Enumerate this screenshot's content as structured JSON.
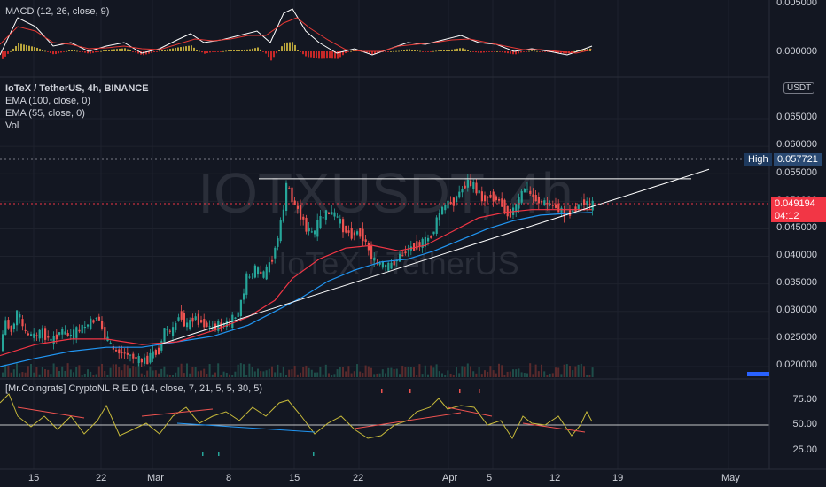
{
  "macd_panel": {
    "legend": "MACD (12, 26, close, 9)",
    "price_labels": [
      "0.005000",
      "0.000000"
    ]
  },
  "main_panel": {
    "title": "IoTeX / TetherUS, 4h, BINANCE",
    "indicators": [
      "EMA (100, close, 0)",
      "EMA (55, close, 0)",
      "Vol"
    ],
    "currency_button": "USDT",
    "watermark_symbol": "IOTXUSDT, 4h",
    "watermark_name": "IoTeX / TetherUS",
    "high_label": "High",
    "high_value": "0.057721",
    "last_price": "0.049194",
    "countdown": "04:12",
    "price_labels": [
      "0.065000",
      "0.060000",
      "0.055000",
      "0.050000",
      "0.045000",
      "0.040000",
      "0.035000",
      "0.030000",
      "0.025000",
      "0.020000"
    ]
  },
  "osc_panel": {
    "legend": "[Mr.Coingrats] CryptoNL R.E.D (14, close, 7, 21, 5, 5, 30, 5)",
    "price_labels": [
      "75.00",
      "50.00",
      "25.00"
    ]
  },
  "time_axis": [
    "15",
    "22",
    "Mar",
    "8",
    "15",
    "22",
    "Apr",
    "5",
    "12",
    "19",
    "May"
  ],
  "colors": {
    "background": "#131722",
    "up": "#26a69a",
    "down": "#ef5350",
    "ema100": "#2196f3",
    "ema55": "#f23645",
    "macd_line": "#ffffff",
    "signal_line": "#e53935",
    "osc_line": "#c6b93a",
    "price_badge": "#f23645",
    "high_badge": "#1e3a5f"
  },
  "chart_data": {
    "type": "candlestick",
    "symbol": "IOTXUSDT",
    "interval": "4h",
    "ylim": [
      0.018,
      0.068
    ],
    "high": 0.057721,
    "last": 0.049194,
    "price_path": [
      [
        0,
        0.021
      ],
      [
        8,
        0.0285
      ],
      [
        14,
        0.0262
      ],
      [
        22,
        0.03
      ],
      [
        30,
        0.026
      ],
      [
        40,
        0.0255
      ],
      [
        50,
        0.0262
      ],
      [
        60,
        0.0245
      ],
      [
        70,
        0.0265
      ],
      [
        80,
        0.0255
      ],
      [
        95,
        0.027
      ],
      [
        105,
        0.028
      ],
      [
        112,
        0.0293
      ],
      [
        120,
        0.0255
      ],
      [
        130,
        0.023
      ],
      [
        140,
        0.0225
      ],
      [
        150,
        0.022
      ],
      [
        160,
        0.021
      ],
      [
        168,
        0.0212
      ],
      [
        175,
        0.0225
      ],
      [
        182,
        0.023
      ],
      [
        188,
        0.027
      ],
      [
        196,
        0.026
      ],
      [
        205,
        0.03
      ],
      [
        212,
        0.027
      ],
      [
        220,
        0.029
      ],
      [
        230,
        0.028
      ],
      [
        240,
        0.027
      ],
      [
        250,
        0.0275
      ],
      [
        262,
        0.028
      ],
      [
        272,
        0.03
      ],
      [
        280,
        0.036
      ],
      [
        290,
        0.0375
      ],
      [
        300,
        0.0365
      ],
      [
        310,
        0.04
      ],
      [
        318,
        0.045
      ],
      [
        322,
        0.049
      ],
      [
        326,
        0.0535
      ],
      [
        332,
        0.05
      ],
      [
        340,
        0.048
      ],
      [
        348,
        0.045
      ],
      [
        356,
        0.044
      ],
      [
        364,
        0.047
      ],
      [
        372,
        0.048
      ],
      [
        380,
        0.0475
      ],
      [
        390,
        0.045
      ],
      [
        398,
        0.044
      ],
      [
        408,
        0.0445
      ],
      [
        416,
        0.042
      ],
      [
        424,
        0.039
      ],
      [
        432,
        0.0385
      ],
      [
        440,
        0.038
      ],
      [
        450,
        0.0395
      ],
      [
        460,
        0.041
      ],
      [
        470,
        0.042
      ],
      [
        480,
        0.0425
      ],
      [
        490,
        0.044
      ],
      [
        498,
        0.048
      ],
      [
        506,
        0.0495
      ],
      [
        514,
        0.05
      ],
      [
        522,
        0.052
      ],
      [
        530,
        0.0535
      ],
      [
        538,
        0.0525
      ],
      [
        546,
        0.0505
      ],
      [
        556,
        0.051
      ],
      [
        566,
        0.05
      ],
      [
        576,
        0.0475
      ],
      [
        584,
        0.049
      ],
      [
        594,
        0.0525
      ],
      [
        602,
        0.051
      ],
      [
        610,
        0.05
      ],
      [
        620,
        0.0495
      ],
      [
        630,
        0.049
      ],
      [
        640,
        0.0475
      ],
      [
        650,
        0.0485
      ],
      [
        660,
        0.05
      ],
      [
        668,
        0.0492
      ]
    ],
    "ema55_path": [
      [
        0,
        0.022
      ],
      [
        40,
        0.024
      ],
      [
        80,
        0.025
      ],
      [
        120,
        0.025
      ],
      [
        160,
        0.024
      ],
      [
        200,
        0.0245
      ],
      [
        240,
        0.0265
      ],
      [
        280,
        0.029
      ],
      [
        310,
        0.032
      ],
      [
        330,
        0.036
      ],
      [
        360,
        0.0395
      ],
      [
        390,
        0.0415
      ],
      [
        420,
        0.042
      ],
      [
        450,
        0.041
      ],
      [
        480,
        0.042
      ],
      [
        510,
        0.0445
      ],
      [
        540,
        0.047
      ],
      [
        570,
        0.048
      ],
      [
        600,
        0.0485
      ],
      [
        630,
        0.0485
      ],
      [
        668,
        0.0485
      ]
    ],
    "ema100_path": [
      [
        0,
        0.02
      ],
      [
        40,
        0.0215
      ],
      [
        80,
        0.0228
      ],
      [
        120,
        0.0235
      ],
      [
        160,
        0.0235
      ],
      [
        200,
        0.0245
      ],
      [
        240,
        0.0255
      ],
      [
        280,
        0.0275
      ],
      [
        310,
        0.03
      ],
      [
        340,
        0.0325
      ],
      [
        370,
        0.0355
      ],
      [
        400,
        0.0375
      ],
      [
        430,
        0.039
      ],
      [
        460,
        0.0395
      ],
      [
        490,
        0.041
      ],
      [
        520,
        0.043
      ],
      [
        550,
        0.045
      ],
      [
        580,
        0.0465
      ],
      [
        610,
        0.0475
      ],
      [
        640,
        0.0478
      ],
      [
        668,
        0.048
      ]
    ],
    "resistance_line": [
      [
        292,
        0.0541
      ],
      [
        780,
        0.0541
      ]
    ],
    "support_trendline": [
      [
        180,
        0.024
      ],
      [
        800,
        0.0558
      ]
    ],
    "macd_line": [
      [
        0,
        62
      ],
      [
        20,
        20
      ],
      [
        40,
        30
      ],
      [
        60,
        52
      ],
      [
        80,
        48
      ],
      [
        100,
        58
      ],
      [
        120,
        52
      ],
      [
        140,
        48
      ],
      [
        160,
        60
      ],
      [
        180,
        55
      ],
      [
        200,
        45
      ],
      [
        215,
        38
      ],
      [
        230,
        48
      ],
      [
        250,
        45
      ],
      [
        270,
        40
      ],
      [
        290,
        35
      ],
      [
        305,
        48
      ],
      [
        320,
        15
      ],
      [
        330,
        10
      ],
      [
        345,
        35
      ],
      [
        360,
        48
      ],
      [
        380,
        60
      ],
      [
        400,
        55
      ],
      [
        420,
        62
      ],
      [
        440,
        55
      ],
      [
        460,
        48
      ],
      [
        480,
        50
      ],
      [
        500,
        45
      ],
      [
        520,
        40
      ],
      [
        540,
        48
      ],
      [
        560,
        50
      ],
      [
        580,
        58
      ],
      [
        600,
        55
      ],
      [
        620,
        58
      ],
      [
        640,
        62
      ],
      [
        660,
        55
      ],
      [
        668,
        52
      ]
    ],
    "macd_signal": [
      [
        0,
        50
      ],
      [
        20,
        30
      ],
      [
        40,
        35
      ],
      [
        60,
        48
      ],
      [
        80,
        50
      ],
      [
        100,
        55
      ],
      [
        120,
        54
      ],
      [
        140,
        52
      ],
      [
        160,
        55
      ],
      [
        180,
        56
      ],
      [
        200,
        50
      ],
      [
        220,
        44
      ],
      [
        240,
        46
      ],
      [
        260,
        44
      ],
      [
        280,
        40
      ],
      [
        300,
        40
      ],
      [
        320,
        26
      ],
      [
        335,
        20
      ],
      [
        350,
        32
      ],
      [
        370,
        45
      ],
      [
        390,
        56
      ],
      [
        410,
        58
      ],
      [
        430,
        58
      ],
      [
        450,
        52
      ],
      [
        470,
        50
      ],
      [
        490,
        48
      ],
      [
        510,
        45
      ],
      [
        530,
        44
      ],
      [
        550,
        48
      ],
      [
        570,
        52
      ],
      [
        590,
        56
      ],
      [
        610,
        56
      ],
      [
        630,
        58
      ],
      [
        650,
        60
      ],
      [
        668,
        56
      ]
    ],
    "osc_line": [
      [
        0,
        455
      ],
      [
        10,
        445
      ],
      [
        20,
        470
      ],
      [
        35,
        482
      ],
      [
        50,
        470
      ],
      [
        65,
        485
      ],
      [
        80,
        470
      ],
      [
        95,
        490
      ],
      [
        110,
        475
      ],
      [
        120,
        458
      ],
      [
        135,
        492
      ],
      [
        150,
        485
      ],
      [
        165,
        478
      ],
      [
        180,
        490
      ],
      [
        195,
        470
      ],
      [
        210,
        460
      ],
      [
        225,
        478
      ],
      [
        240,
        470
      ],
      [
        255,
        465
      ],
      [
        270,
        475
      ],
      [
        285,
        460
      ],
      [
        300,
        470
      ],
      [
        315,
        455
      ],
      [
        325,
        452
      ],
      [
        340,
        470
      ],
      [
        355,
        490
      ],
      [
        370,
        478
      ],
      [
        385,
        470
      ],
      [
        400,
        485
      ],
      [
        415,
        495
      ],
      [
        430,
        492
      ],
      [
        445,
        480
      ],
      [
        460,
        475
      ],
      [
        470,
        465
      ],
      [
        485,
        460
      ],
      [
        495,
        450
      ],
      [
        505,
        462
      ],
      [
        520,
        458
      ],
      [
        535,
        460
      ],
      [
        550,
        480
      ],
      [
        565,
        475
      ],
      [
        578,
        495
      ],
      [
        590,
        470
      ],
      [
        600,
        478
      ],
      [
        615,
        480
      ],
      [
        630,
        470
      ],
      [
        645,
        492
      ],
      [
        655,
        480
      ],
      [
        662,
        465
      ],
      [
        668,
        476
      ]
    ]
  }
}
